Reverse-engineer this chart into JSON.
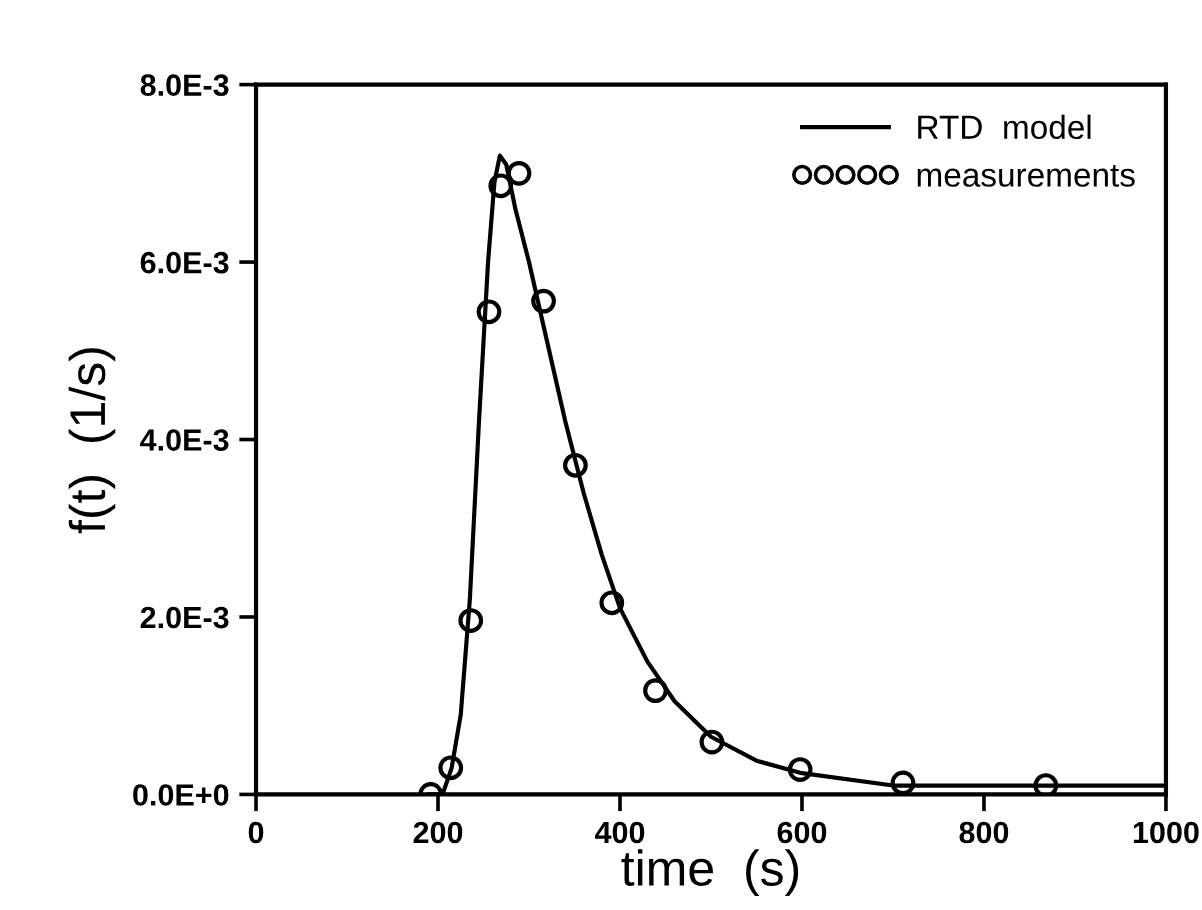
{
  "chart_data": {
    "type": "line",
    "xlabel": "time  (s)",
    "ylabel": "f(t)  (1/s)",
    "xlim": [
      0,
      1000
    ],
    "ylim": [
      0,
      0.008
    ],
    "xticks": [
      0,
      200,
      400,
      600,
      800,
      1000
    ],
    "yticks": [
      {
        "value": 0,
        "label": "0.0E+0"
      },
      {
        "value": 0.002,
        "label": "2.0E-3"
      },
      {
        "value": 0.004,
        "label": "4.0E-3"
      },
      {
        "value": 0.006,
        "label": "6.0E-3"
      },
      {
        "value": 0.008,
        "label": "8.0E-3"
      }
    ],
    "grid": false,
    "legend": "top right",
    "series": [
      {
        "name": "RTD  model",
        "color": "#000000",
        "marker": "none",
        "line_style": "solid",
        "x": [
          190,
          205,
          215,
          225,
          235,
          245,
          255,
          262,
          268,
          275,
          285,
          300,
          320,
          340,
          360,
          380,
          400,
          430,
          460,
          500,
          550,
          600,
          700,
          800,
          900,
          1000
        ],
        "values": [
          0,
          0,
          0.0003,
          0.0009,
          0.0022,
          0.0042,
          0.006,
          0.0069,
          0.0072,
          0.0071,
          0.0066,
          0.006,
          0.0051,
          0.0042,
          0.0034,
          0.0027,
          0.0021,
          0.0015,
          0.00105,
          0.00065,
          0.00038,
          0.00024,
          0.0001,
          0.0001,
          0.0001,
          0.0001
        ]
      },
      {
        "name": "measurements",
        "type": "scatter",
        "color": "#000000",
        "marker": "circle",
        "x": [
          192,
          214,
          236,
          256,
          269,
          289,
          316,
          351,
          391,
          439,
          501,
          598,
          711,
          868
        ],
        "values": [
          0,
          0.0003,
          0.00196,
          0.00544,
          0.00686,
          0.007,
          0.00556,
          0.00371,
          0.00216,
          0.00117,
          0.00059,
          0.00028,
          0.00013,
          0.0001
        ]
      }
    ]
  }
}
